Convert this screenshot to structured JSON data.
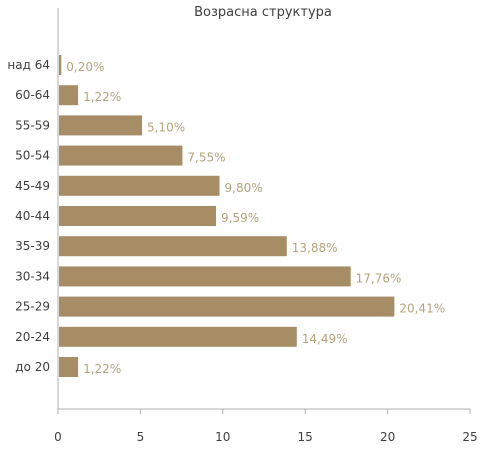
{
  "chart_data": {
    "type": "bar",
    "orientation": "horizontal",
    "title": "Возрасна структура",
    "xlabel": "",
    "ylabel": "",
    "xlim": [
      0,
      25
    ],
    "x_ticks": [
      "0",
      "5",
      "10",
      "15",
      "20",
      "25"
    ],
    "grid": false,
    "legend": "none",
    "categories": [
      "над 64",
      "60-64",
      "55-59",
      "50-54",
      "45-49",
      "40-44",
      "35-39",
      "30-34",
      "25-29",
      "20-24",
      "до 20"
    ],
    "values": [
      0.2,
      1.22,
      5.1,
      7.55,
      9.8,
      9.59,
      13.88,
      17.76,
      20.41,
      14.49,
      1.22
    ],
    "value_labels": [
      "0,20%",
      "1,22%",
      "5,10%",
      "7,55%",
      "9,80%",
      "9,59%",
      "13,88%",
      "17,76%",
      "20,41%",
      "14,49%",
      "1,22%"
    ],
    "colors": {
      "bar": "#a68d66",
      "value_label": "#b5a37e",
      "axis": "#b0b0b0",
      "text": "#3f3f3f"
    }
  }
}
